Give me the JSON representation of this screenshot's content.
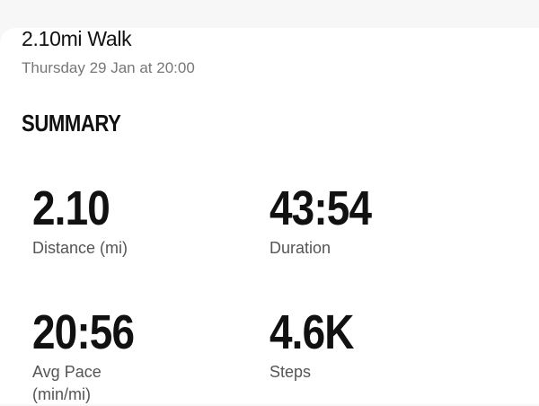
{
  "activity": {
    "title": "2.10mi Walk",
    "date": "Thursday 29 Jan at 20:00"
  },
  "summary": {
    "heading": "SUMMARY",
    "stats": [
      {
        "value": "2.10",
        "label": "Distance (mi)"
      },
      {
        "value": "43:54",
        "label": "Duration"
      },
      {
        "value": "20:56",
        "label": "Avg Pace (min/mi)"
      },
      {
        "value": "4.6K",
        "label": "Steps"
      }
    ]
  }
}
